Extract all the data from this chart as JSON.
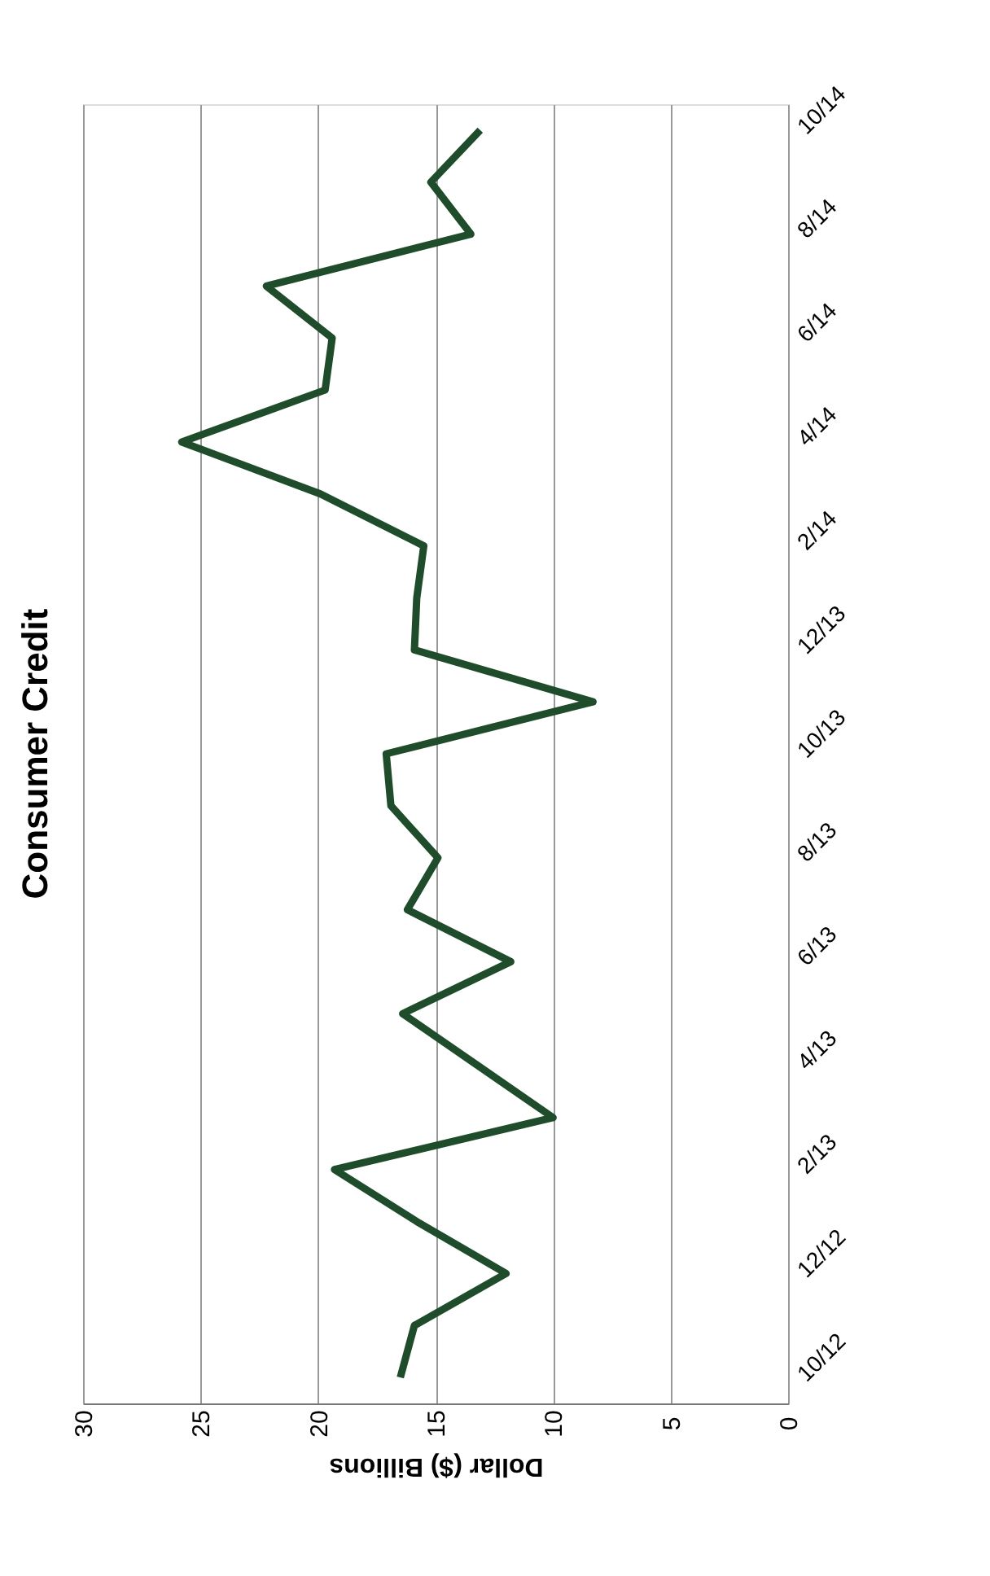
{
  "chart_data": {
    "type": "line",
    "title": "Consumer Credit",
    "xlabel": "Dollar ($) Billions",
    "orientation": "horizontal",
    "categories": [
      "10/14",
      null,
      "8/14",
      null,
      "6/14",
      null,
      "4/14",
      null,
      "2/14",
      null,
      "12/13",
      null,
      "10/13",
      null,
      "8/13",
      null,
      "6/13",
      null,
      "4/13",
      null,
      "2/13",
      null,
      "12/12",
      null,
      "10/12"
    ],
    "values": [
      13.1,
      15.2,
      13.5,
      22.2,
      19.4,
      19.7,
      25.8,
      19.9,
      15.5,
      15.8,
      15.9,
      8.3,
      17.1,
      16.9,
      14.9,
      16.2,
      11.8,
      16.4,
      13.2,
      10.0,
      19.3,
      15.8,
      12.0,
      15.9,
      16.5
    ],
    "color": "#1f4d2c",
    "xlim": [
      30,
      0
    ],
    "xticks": [
      0,
      5,
      10,
      15,
      20,
      25,
      30
    ],
    "grid": "x",
    "marker": "none",
    "line_style": "solid"
  }
}
